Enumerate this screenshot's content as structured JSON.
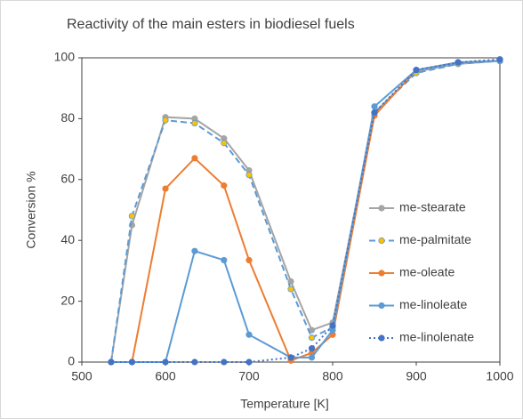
{
  "chart_data": {
    "type": "line",
    "title": "Reactivity of the main esters in biodiesel fuels",
    "x_label": "Temperature [K]",
    "y_label": "Conversion %",
    "x": [
      535,
      560,
      600,
      635,
      670,
      700,
      750,
      775,
      800,
      850,
      900,
      950,
      1000
    ],
    "series": [
      {
        "name": "me-stearate",
        "color": "#a5a5a5",
        "marker_color": "#a5a5a5",
        "dash": "solid",
        "values": [
          0,
          45,
          80.5,
          80,
          73.5,
          63,
          26.5,
          10.5,
          13,
          82,
          95.5,
          98,
          99
        ]
      },
      {
        "name": "me-palmitate",
        "color": "#5b9bd5",
        "marker_color": "#ffc000",
        "dash": "dashed",
        "values": [
          0,
          48,
          79.5,
          78.5,
          72,
          61.5,
          24,
          8,
          11.5,
          82,
          95,
          98,
          99
        ]
      },
      {
        "name": "me-oleate",
        "color": "#ed7d31",
        "marker_color": "#ed7d31",
        "dash": "solid",
        "values": [
          0,
          0,
          57,
          67,
          58,
          33.5,
          0.5,
          3,
          9,
          81,
          96,
          98.5,
          99
        ]
      },
      {
        "name": "me-linoleate",
        "color": "#5b9bd5",
        "marker_color": "#5b9bd5",
        "dash": "solid",
        "values": [
          0,
          0,
          0,
          36.5,
          33.5,
          9,
          1.5,
          1.5,
          10.5,
          84,
          96,
          98.5,
          99
        ]
      },
      {
        "name": "me-linolenate",
        "color": "#4472c4",
        "marker_color": "#4472c4",
        "dash": "dotted",
        "values": [
          0,
          0,
          0,
          0,
          0,
          0,
          1.5,
          4.5,
          12,
          82,
          96,
          98.5,
          99.5
        ]
      }
    ],
    "xlim": [
      500,
      1000
    ],
    "xticks": [
      500,
      600,
      700,
      800,
      900,
      1000
    ],
    "ylim": [
      0,
      100
    ],
    "yticks": [
      0,
      20,
      40,
      60,
      80,
      100
    ],
    "legend": "right"
  }
}
